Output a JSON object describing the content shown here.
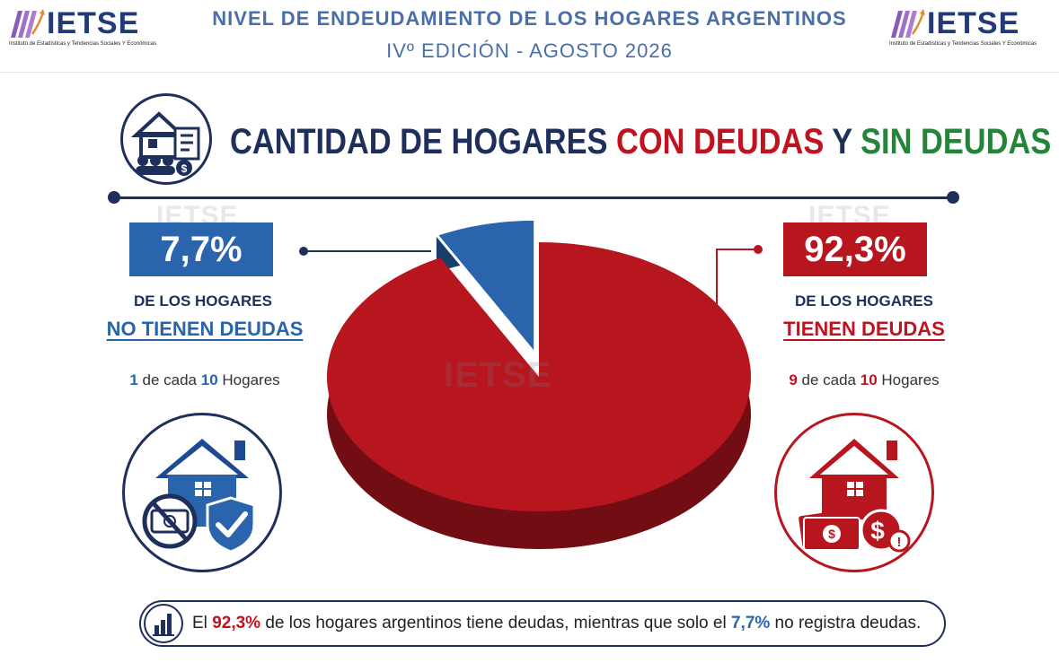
{
  "header": {
    "logo_text": "IETSE",
    "logo_subtitle": "Instituto de Estadísticas y Tendencias Sociales Y Económicas",
    "title": "NIVEL DE ENDEUDAMIENTO DE LOS HOGARES ARGENTINOS",
    "edition": "IVº EDICIÓN - AGOSTO 2026"
  },
  "main_title": {
    "part1": "CANTIDAD DE HOGARES ",
    "part2": "CON DEUDAS",
    "part3": " Y ",
    "part4": "SIN DEUDAS"
  },
  "left": {
    "percent": "7,7%",
    "line1": "DE LOS HOGARES",
    "line2": "NO TIENEN DEUDAS",
    "ratio_a": "1",
    "ratio_mid": " de cada ",
    "ratio_b": "10",
    "ratio_end": " Hogares"
  },
  "right": {
    "percent": "92,3%",
    "line1": "DE LOS HOGARES",
    "line2": "TIENEN DEUDAS",
    "ratio_a": "9",
    "ratio_mid": " de cada ",
    "ratio_b": "10",
    "ratio_end": " Hogares"
  },
  "watermark": "IETSE",
  "footer": {
    "t1": "El ",
    "v1": "92,3%",
    "t2": " de los hogares argentinos tiene deudas, mientras que solo el ",
    "v2": "7,7%",
    "t3": " no registra deudas."
  },
  "colors": {
    "navy": "#1e2f5c",
    "red": "#b8161f",
    "blue": "#2a64ad",
    "green": "#24843a"
  },
  "chart_data": {
    "type": "pie",
    "categories": [
      "No tienen deudas",
      "Tienen deudas"
    ],
    "values": [
      7.7,
      92.3
    ],
    "colors": [
      "#2a64ad",
      "#b8161f"
    ],
    "exploded": "No tienen deudas"
  }
}
